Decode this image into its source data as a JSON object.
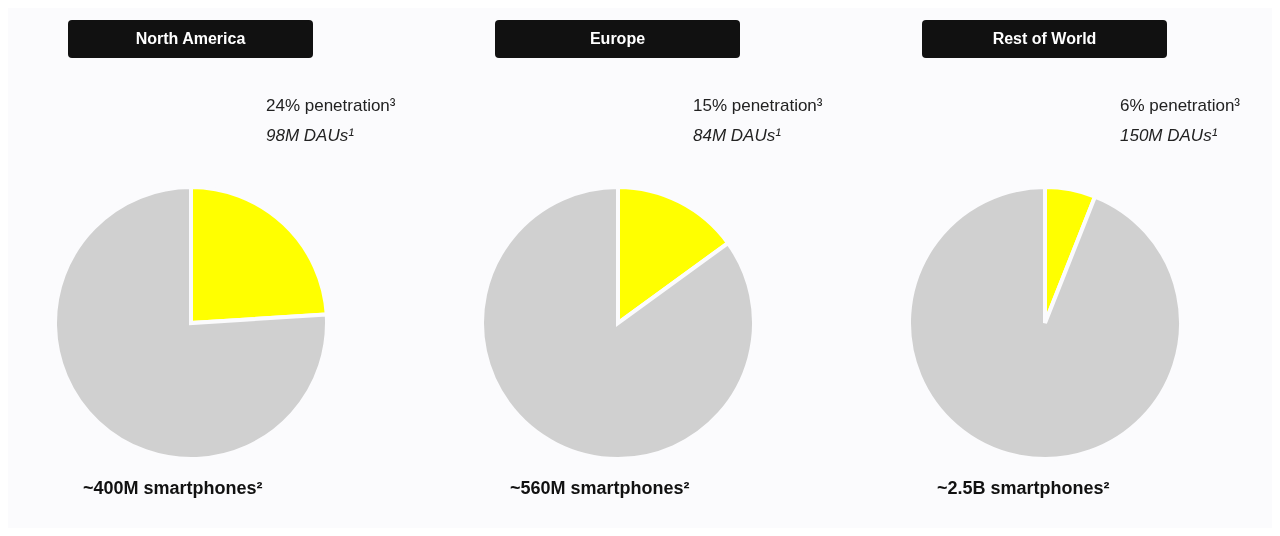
{
  "chart_data": [
    {
      "type": "pie",
      "title": "North America",
      "categories": [
        null,
        null
      ],
      "values": [
        24,
        76
      ],
      "colors": [
        "#ffff00",
        "#d0d0d0"
      ],
      "annotations": [
        "24% penetration³",
        "98M DAUs¹",
        "~400M smartphones²"
      ]
    },
    {
      "type": "pie",
      "title": "Europe",
      "categories": [
        null,
        null
      ],
      "values": [
        15,
        85
      ],
      "colors": [
        "#ffff00",
        "#d0d0d0"
      ],
      "annotations": [
        "15% penetration³",
        "84M DAUs¹",
        "~560M smartphones²"
      ]
    },
    {
      "type": "pie",
      "title": "Rest of World",
      "categories": [
        null,
        null
      ],
      "values": [
        6,
        94
      ],
      "colors": [
        "#ffff00",
        "#d0d0d0"
      ],
      "annotations": [
        "6% penetration³",
        "150M DAUs¹",
        "~2.5B smartphones²"
      ]
    }
  ]
}
